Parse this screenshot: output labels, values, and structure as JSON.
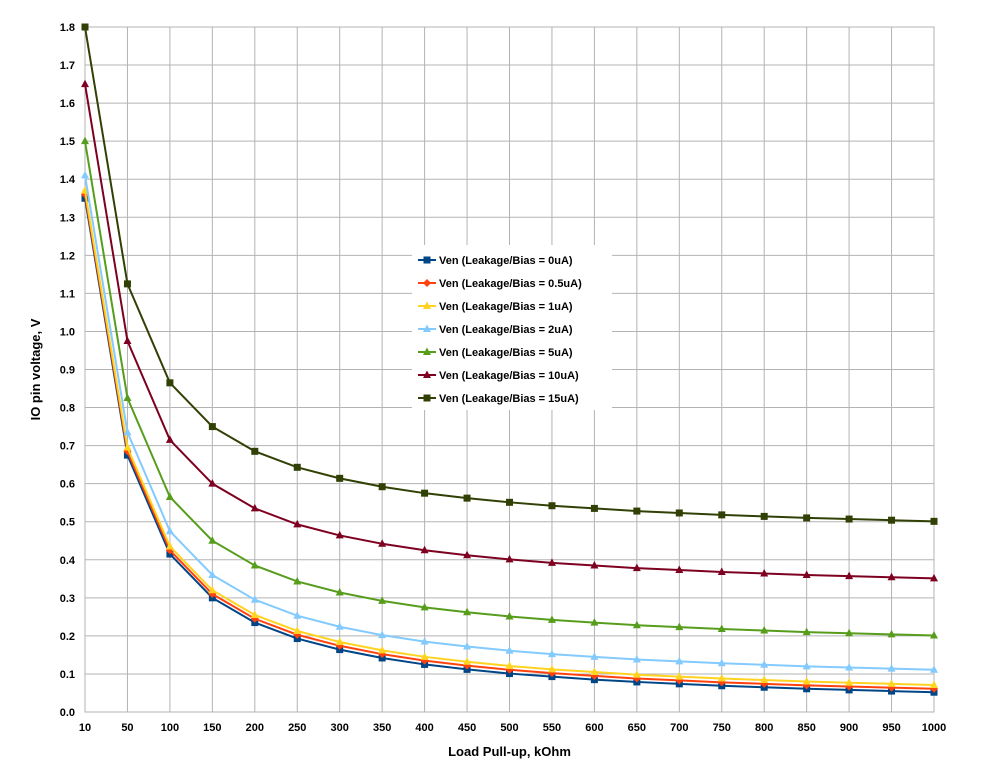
{
  "chart_data": {
    "type": "line",
    "xlabel": "Load Pull-up, kOhm",
    "ylabel": "IO pin voltage, V",
    "x": [
      10,
      50,
      100,
      150,
      200,
      250,
      300,
      350,
      400,
      450,
      500,
      550,
      600,
      650,
      700,
      750,
      800,
      850,
      900,
      950,
      1000
    ],
    "ylim": [
      0,
      1.8
    ],
    "yticks": [
      "0.0",
      "0.1",
      "0.2",
      "0.3",
      "0.4",
      "0.5",
      "0.6",
      "0.7",
      "0.8",
      "0.9",
      "1.0",
      "1.1",
      "1.2",
      "1.3",
      "1.4",
      "1.5",
      "1.6",
      "1.7",
      "1.8"
    ],
    "grid": true,
    "legend_position": "center",
    "series": [
      {
        "name": "Ven (Leakage/Bias = 0uA)",
        "color": "#004586",
        "marker": "square",
        "values": [
          1.35,
          0.675,
          0.415,
          0.3,
          0.235,
          0.193,
          0.164,
          0.142,
          0.125,
          0.112,
          0.101,
          0.093,
          0.085,
          0.079,
          0.074,
          0.069,
          0.065,
          0.061,
          0.058,
          0.055,
          0.052
        ]
      },
      {
        "name": "Ven (Leakage/Bias = 0.5uA)",
        "color": "#ff420e",
        "marker": "diamond",
        "values": [
          1.36,
          0.685,
          0.425,
          0.31,
          0.245,
          0.203,
          0.174,
          0.152,
          0.135,
          0.122,
          0.111,
          0.102,
          0.095,
          0.088,
          0.083,
          0.078,
          0.074,
          0.07,
          0.067,
          0.064,
          0.061
        ]
      },
      {
        "name": "Ven (Leakage/Bias = 1uA)",
        "color": "#ffd320",
        "marker": "triangle",
        "values": [
          1.37,
          0.695,
          0.435,
          0.32,
          0.255,
          0.213,
          0.184,
          0.162,
          0.145,
          0.132,
          0.121,
          0.112,
          0.105,
          0.098,
          0.093,
          0.088,
          0.084,
          0.08,
          0.077,
          0.074,
          0.071
        ]
      },
      {
        "name": "Ven (Leakage/Bias = 2uA)",
        "color": "#83caff",
        "marker": "triangle",
        "values": [
          1.41,
          0.735,
          0.475,
          0.36,
          0.295,
          0.253,
          0.224,
          0.202,
          0.185,
          0.172,
          0.161,
          0.152,
          0.145,
          0.138,
          0.133,
          0.128,
          0.124,
          0.12,
          0.117,
          0.114,
          0.111
        ]
      },
      {
        "name": "Ven (Leakage/Bias = 5uA)",
        "color": "#579d1c",
        "marker": "triangle",
        "values": [
          1.5,
          0.825,
          0.565,
          0.45,
          0.385,
          0.343,
          0.314,
          0.292,
          0.275,
          0.262,
          0.251,
          0.242,
          0.235,
          0.228,
          0.223,
          0.218,
          0.214,
          0.21,
          0.207,
          0.204,
          0.201
        ]
      },
      {
        "name": "Ven (Leakage/Bias = 10uA)",
        "color": "#7e0021",
        "marker": "triangle",
        "values": [
          1.65,
          0.975,
          0.715,
          0.6,
          0.535,
          0.493,
          0.464,
          0.442,
          0.425,
          0.412,
          0.401,
          0.392,
          0.385,
          0.378,
          0.373,
          0.368,
          0.364,
          0.36,
          0.357,
          0.354,
          0.351
        ]
      },
      {
        "name": "Ven (Leakage/Bias = 15uA)",
        "color": "#314004",
        "marker": "square",
        "values": [
          1.8,
          1.125,
          0.865,
          0.75,
          0.685,
          0.643,
          0.614,
          0.592,
          0.575,
          0.562,
          0.551,
          0.542,
          0.535,
          0.528,
          0.523,
          0.518,
          0.514,
          0.51,
          0.507,
          0.504,
          0.501
        ]
      }
    ]
  }
}
